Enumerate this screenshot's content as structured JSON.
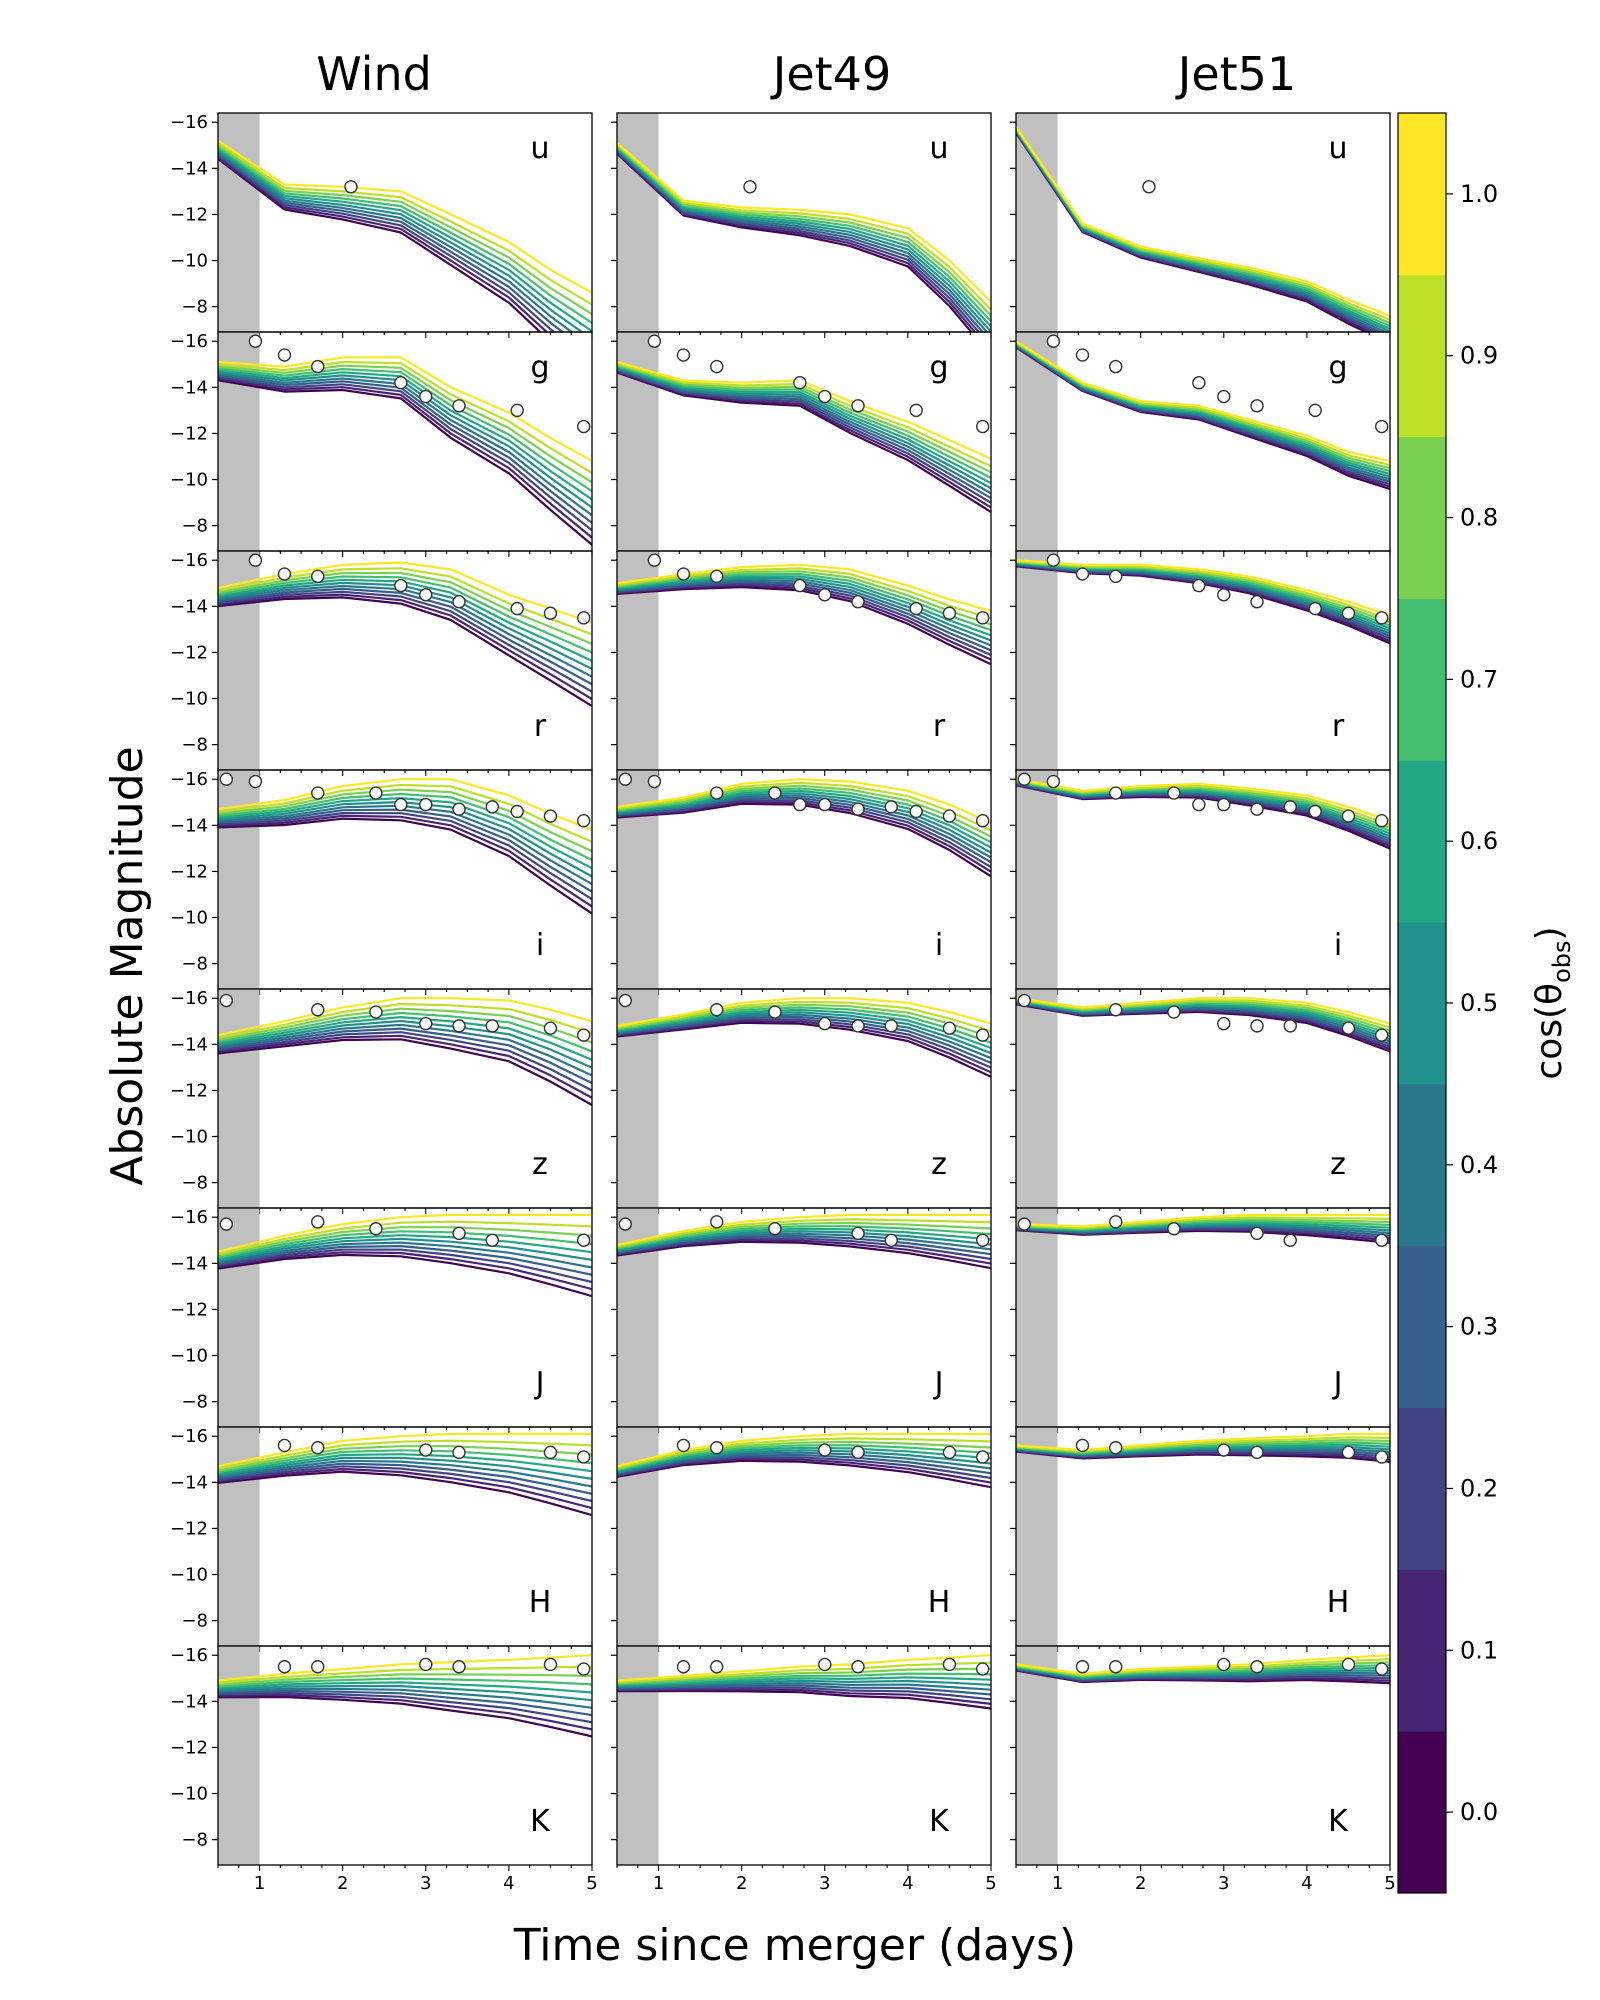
{
  "column_titles": [
    "Wind",
    "Jet49",
    "Jet51"
  ],
  "band_labels": [
    "u",
    "g",
    "r",
    "i",
    "z",
    "J",
    "H",
    "K"
  ],
  "ylabel": "Absolute Magnitude",
  "xlabel": "Time since merger (days)",
  "colorbar": {
    "label_prefix": "cos(θ",
    "label_sub": "obs",
    "label_suffix": ")",
    "ticks": [
      "0.0",
      "0.1",
      "0.2",
      "0.3",
      "0.4",
      "0.5",
      "0.6",
      "0.7",
      "0.8",
      "0.9",
      "1.0"
    ],
    "colors": [
      "#440154",
      "#482475",
      "#414487",
      "#355f8d",
      "#2a788e",
      "#21918c",
      "#22a884",
      "#44bf70",
      "#7ad151",
      "#bddf26",
      "#fde725"
    ]
  },
  "shading": {
    "x_range": [
      0.5,
      1.0
    ],
    "color": "#c0c0c0"
  },
  "chart_data": {
    "type": "line",
    "layout": "8 rows (photometric bands) x 3 columns (models)",
    "xlim": [
      0.5,
      5
    ],
    "ylim": [
      -6.9,
      -16.4
    ],
    "y_inverted": true,
    "x_ticks": [
      "1",
      "2",
      "3",
      "4",
      "5"
    ],
    "y_ticks": [
      "-16",
      "-14",
      "-12",
      "-10",
      "-8"
    ],
    "x": [
      0.5,
      1.3,
      2.0,
      2.7,
      3.3,
      4.0,
      4.5,
      5.0
    ],
    "angle_series": [
      "0.0",
      "0.1",
      "0.2",
      "0.3",
      "0.4",
      "0.5",
      "0.6",
      "0.7",
      "0.8",
      "0.9",
      "1.0"
    ],
    "observations": {
      "u": {
        "t": [
          2.1
        ],
        "mag": [
          -13.2
        ]
      },
      "g": {
        "t": [
          0.95,
          1.3,
          1.7,
          2.7,
          3.0,
          3.4,
          4.1,
          4.9
        ],
        "mag": [
          -16.0,
          -15.4,
          -14.9,
          -14.2,
          -13.6,
          -13.2,
          -13.0,
          -12.3
        ]
      },
      "r": {
        "t": [
          0.95,
          1.3,
          1.7,
          2.7,
          3.0,
          3.4,
          4.1,
          4.5,
          4.9
        ],
        "mag": [
          -16.0,
          -15.4,
          -15.3,
          -14.9,
          -14.5,
          -14.2,
          -13.9,
          -13.7,
          -13.5
        ]
      },
      "i": {
        "t": [
          0.6,
          0.95,
          1.7,
          2.4,
          2.7,
          3.0,
          3.4,
          3.8,
          4.1,
          4.5,
          4.9
        ],
        "mag": [
          -16.0,
          -15.9,
          -15.4,
          -15.4,
          -14.9,
          -14.9,
          -14.7,
          -14.8,
          -14.6,
          -14.4,
          -14.2
        ]
      },
      "z": {
        "t": [
          0.6,
          1.7,
          2.4,
          3.0,
          3.4,
          3.8,
          4.5,
          4.9
        ],
        "mag": [
          -15.9,
          -15.5,
          -15.4,
          -14.9,
          -14.8,
          -14.8,
          -14.7,
          -14.4
        ]
      },
      "J": {
        "t": [
          0.6,
          1.7,
          2.4,
          3.4,
          3.8,
          4.9
        ],
        "mag": [
          -15.7,
          -15.8,
          -15.5,
          -15.3,
          -15.0,
          -15.0
        ]
      },
      "H": {
        "t": [
          1.3,
          1.7,
          3.0,
          3.4,
          4.5,
          4.9
        ],
        "mag": [
          -15.6,
          -15.5,
          -15.4,
          -15.3,
          -15.3,
          -15.1
        ]
      },
      "K": {
        "t": [
          1.3,
          1.7,
          3.0,
          3.4,
          4.5,
          4.9
        ],
        "mag": [
          -15.5,
          -15.5,
          -15.6,
          -15.5,
          -15.6,
          -15.4
        ]
      }
    },
    "models": {
      "Wind": {
        "u": {
          "polar": [
            -15.2,
            -13.3,
            -13.2,
            -13.0,
            -12.0,
            -10.8,
            -9.6,
            -8.6
          ],
          "spread": [
            0.6,
            0.75,
            0.9,
            1.05,
            1.2,
            1.35,
            1.5,
            1.65,
            1.85,
            2.3,
            3.0
          ]
        },
        "g": {
          "polar": [
            -15.1,
            -14.9,
            -15.3,
            -15.3,
            -14.0,
            -12.9,
            -11.8,
            -10.8
          ],
          "spread": [
            0.6,
            0.75,
            0.9,
            1.05,
            1.2,
            1.35,
            1.5,
            1.65,
            1.85,
            2.3,
            3.0
          ]
        },
        "r": {
          "polar": [
            -14.8,
            -15.4,
            -15.8,
            -15.9,
            -15.6,
            -14.5,
            -13.9,
            -13.3
          ],
          "spread": [
            0.6,
            0.75,
            0.9,
            1.05,
            1.2,
            1.35,
            1.5,
            1.65,
            1.85,
            2.3,
            3.0
          ]
        },
        "i": {
          "polar": [
            -14.7,
            -15.1,
            -15.7,
            -16.0,
            -16.0,
            -15.3,
            -14.5,
            -13.8
          ],
          "spread": [
            0.6,
            0.75,
            0.9,
            1.05,
            1.2,
            1.35,
            1.5,
            1.65,
            1.85,
            2.3,
            3.0
          ]
        },
        "z": {
          "polar": [
            -14.4,
            -15.0,
            -15.6,
            -16.0,
            -16.0,
            -15.9,
            -15.5,
            -15.0
          ],
          "spread": [
            0.6,
            0.75,
            0.9,
            1.05,
            1.2,
            1.35,
            1.5,
            1.65,
            1.85,
            2.3,
            3.0
          ]
        },
        "J": {
          "polar": [
            -14.5,
            -15.2,
            -15.7,
            -16.0,
            -16.1,
            -16.1,
            -16.1,
            -16.1
          ],
          "spread": [
            0.55,
            0.7,
            0.85,
            1.0,
            1.15,
            1.3,
            1.45,
            1.6,
            1.8,
            2.1,
            2.6
          ]
        },
        "H": {
          "polar": [
            -14.7,
            -15.3,
            -15.8,
            -16.0,
            -16.1,
            -16.1,
            -16.1,
            -16.1
          ],
          "spread": [
            0.55,
            0.7,
            0.85,
            1.0,
            1.15,
            1.3,
            1.45,
            1.6,
            1.75,
            1.95,
            2.3
          ]
        },
        "K": {
          "polar": [
            -14.9,
            -15.2,
            -15.4,
            -15.6,
            -15.7,
            -15.8,
            -15.9,
            -16.0
          ],
          "spread": [
            0.55,
            0.7,
            0.85,
            1.0,
            1.15,
            1.3,
            1.45,
            1.6,
            1.75,
            1.95,
            2.3
          ]
        }
      },
      "Jet49": {
        "u": {
          "polar": [
            -15.1,
            -12.6,
            -12.3,
            -12.2,
            -12.0,
            -11.4,
            -10.0,
            -8.2
          ],
          "spread": [
            0.35,
            0.45,
            0.55,
            0.65,
            0.75,
            0.85,
            0.95,
            1.05,
            1.15,
            1.25,
            1.35
          ]
        },
        "g": {
          "polar": [
            -15.1,
            -14.3,
            -14.2,
            -14.3,
            -13.4,
            -12.5,
            -11.7,
            -10.9
          ],
          "spread": [
            0.35,
            0.45,
            0.55,
            0.65,
            0.75,
            0.85,
            0.95,
            1.05,
            1.15,
            1.25,
            1.35
          ]
        },
        "r": {
          "polar": [
            -15.0,
            -15.4,
            -15.7,
            -15.8,
            -15.6,
            -14.9,
            -14.3,
            -13.8
          ],
          "spread": [
            0.35,
            0.45,
            0.55,
            0.65,
            0.75,
            0.85,
            0.95,
            1.05,
            1.15,
            1.25,
            1.35
          ]
        },
        "i": {
          "polar": [
            -14.8,
            -15.2,
            -15.8,
            -16.0,
            -15.9,
            -15.5,
            -14.9,
            -14.1
          ],
          "spread": [
            0.35,
            0.45,
            0.55,
            0.65,
            0.75,
            0.85,
            0.95,
            1.05,
            1.15,
            1.25,
            1.35
          ]
        },
        "z": {
          "polar": [
            -14.8,
            -15.3,
            -15.8,
            -16.0,
            -16.0,
            -15.8,
            -15.4,
            -14.9
          ],
          "spread": [
            0.35,
            0.45,
            0.55,
            0.65,
            0.75,
            0.85,
            0.95,
            1.05,
            1.15,
            1.25,
            1.35
          ]
        },
        "J": {
          "polar": [
            -14.8,
            -15.4,
            -15.8,
            -16.0,
            -16.1,
            -16.1,
            -16.1,
            -16.1
          ],
          "spread": [
            0.35,
            0.45,
            0.55,
            0.65,
            0.75,
            0.85,
            0.95,
            1.05,
            1.15,
            1.25,
            1.35
          ]
        },
        "H": {
          "polar": [
            -14.7,
            -15.4,
            -15.8,
            -16.0,
            -16.1,
            -16.1,
            -16.1,
            -16.1
          ],
          "spread": [
            0.35,
            0.45,
            0.55,
            0.65,
            0.75,
            0.85,
            0.95,
            1.05,
            1.15,
            1.25,
            1.35
          ]
        },
        "K": {
          "polar": [
            -14.9,
            -15.1,
            -15.3,
            -15.5,
            -15.6,
            -15.8,
            -15.9,
            -16.0
          ],
          "spread": [
            0.35,
            0.45,
            0.55,
            0.65,
            0.75,
            0.85,
            0.95,
            1.05,
            1.15,
            1.25,
            1.35
          ]
        }
      },
      "Jet51": {
        "u": {
          "polar": [
            -15.8,
            -11.6,
            -10.6,
            -10.1,
            -9.7,
            -9.1,
            -8.3,
            -7.6
          ],
          "spread": [
            0.2,
            0.25,
            0.3,
            0.35,
            0.4,
            0.45,
            0.5,
            0.55,
            0.6,
            0.65,
            0.7
          ]
        },
        "g": {
          "polar": [
            -16.0,
            -14.2,
            -13.4,
            -13.2,
            -12.6,
            -11.9,
            -11.2,
            -10.8
          ],
          "spread": [
            0.2,
            0.25,
            0.3,
            0.35,
            0.4,
            0.45,
            0.5,
            0.55,
            0.6,
            0.65,
            0.7
          ]
        },
        "r": {
          "polar": [
            -16.0,
            -15.8,
            -15.8,
            -15.6,
            -15.3,
            -14.7,
            -14.2,
            -13.6
          ],
          "spread": [
            0.2,
            0.25,
            0.3,
            0.35,
            0.4,
            0.45,
            0.5,
            0.55,
            0.6,
            0.65,
            0.7
          ]
        },
        "i": {
          "polar": [
            -16.0,
            -15.5,
            -15.7,
            -15.8,
            -15.6,
            -15.3,
            -14.8,
            -14.2
          ],
          "spread": [
            0.2,
            0.25,
            0.3,
            0.35,
            0.4,
            0.45,
            0.5,
            0.55,
            0.6,
            0.65,
            0.7
          ]
        },
        "z": {
          "polar": [
            -16.0,
            -15.6,
            -15.8,
            -16.0,
            -16.0,
            -15.8,
            -15.4,
            -14.9
          ],
          "spread": [
            0.2,
            0.25,
            0.3,
            0.35,
            0.4,
            0.45,
            0.5,
            0.55,
            0.6,
            0.65,
            0.7
          ]
        },
        "J": {
          "polar": [
            -15.7,
            -15.6,
            -15.8,
            -16.0,
            -16.1,
            -16.1,
            -16.1,
            -16.1
          ],
          "spread": [
            0.2,
            0.25,
            0.3,
            0.35,
            0.4,
            0.45,
            0.5,
            0.55,
            0.6,
            0.65,
            0.7
          ]
        },
        "H": {
          "polar": [
            -15.6,
            -15.4,
            -15.6,
            -15.8,
            -15.9,
            -16.0,
            -16.1,
            -16.1
          ],
          "spread": [
            0.2,
            0.25,
            0.3,
            0.35,
            0.4,
            0.45,
            0.5,
            0.55,
            0.6,
            0.65,
            0.7
          ]
        },
        "K": {
          "polar": [
            -15.6,
            -15.2,
            -15.4,
            -15.5,
            -15.6,
            -15.8,
            -15.9,
            -16.0
          ],
          "spread": [
            0.2,
            0.25,
            0.3,
            0.35,
            0.4,
            0.45,
            0.5,
            0.55,
            0.6,
            0.65,
            0.7
          ]
        }
      }
    }
  }
}
